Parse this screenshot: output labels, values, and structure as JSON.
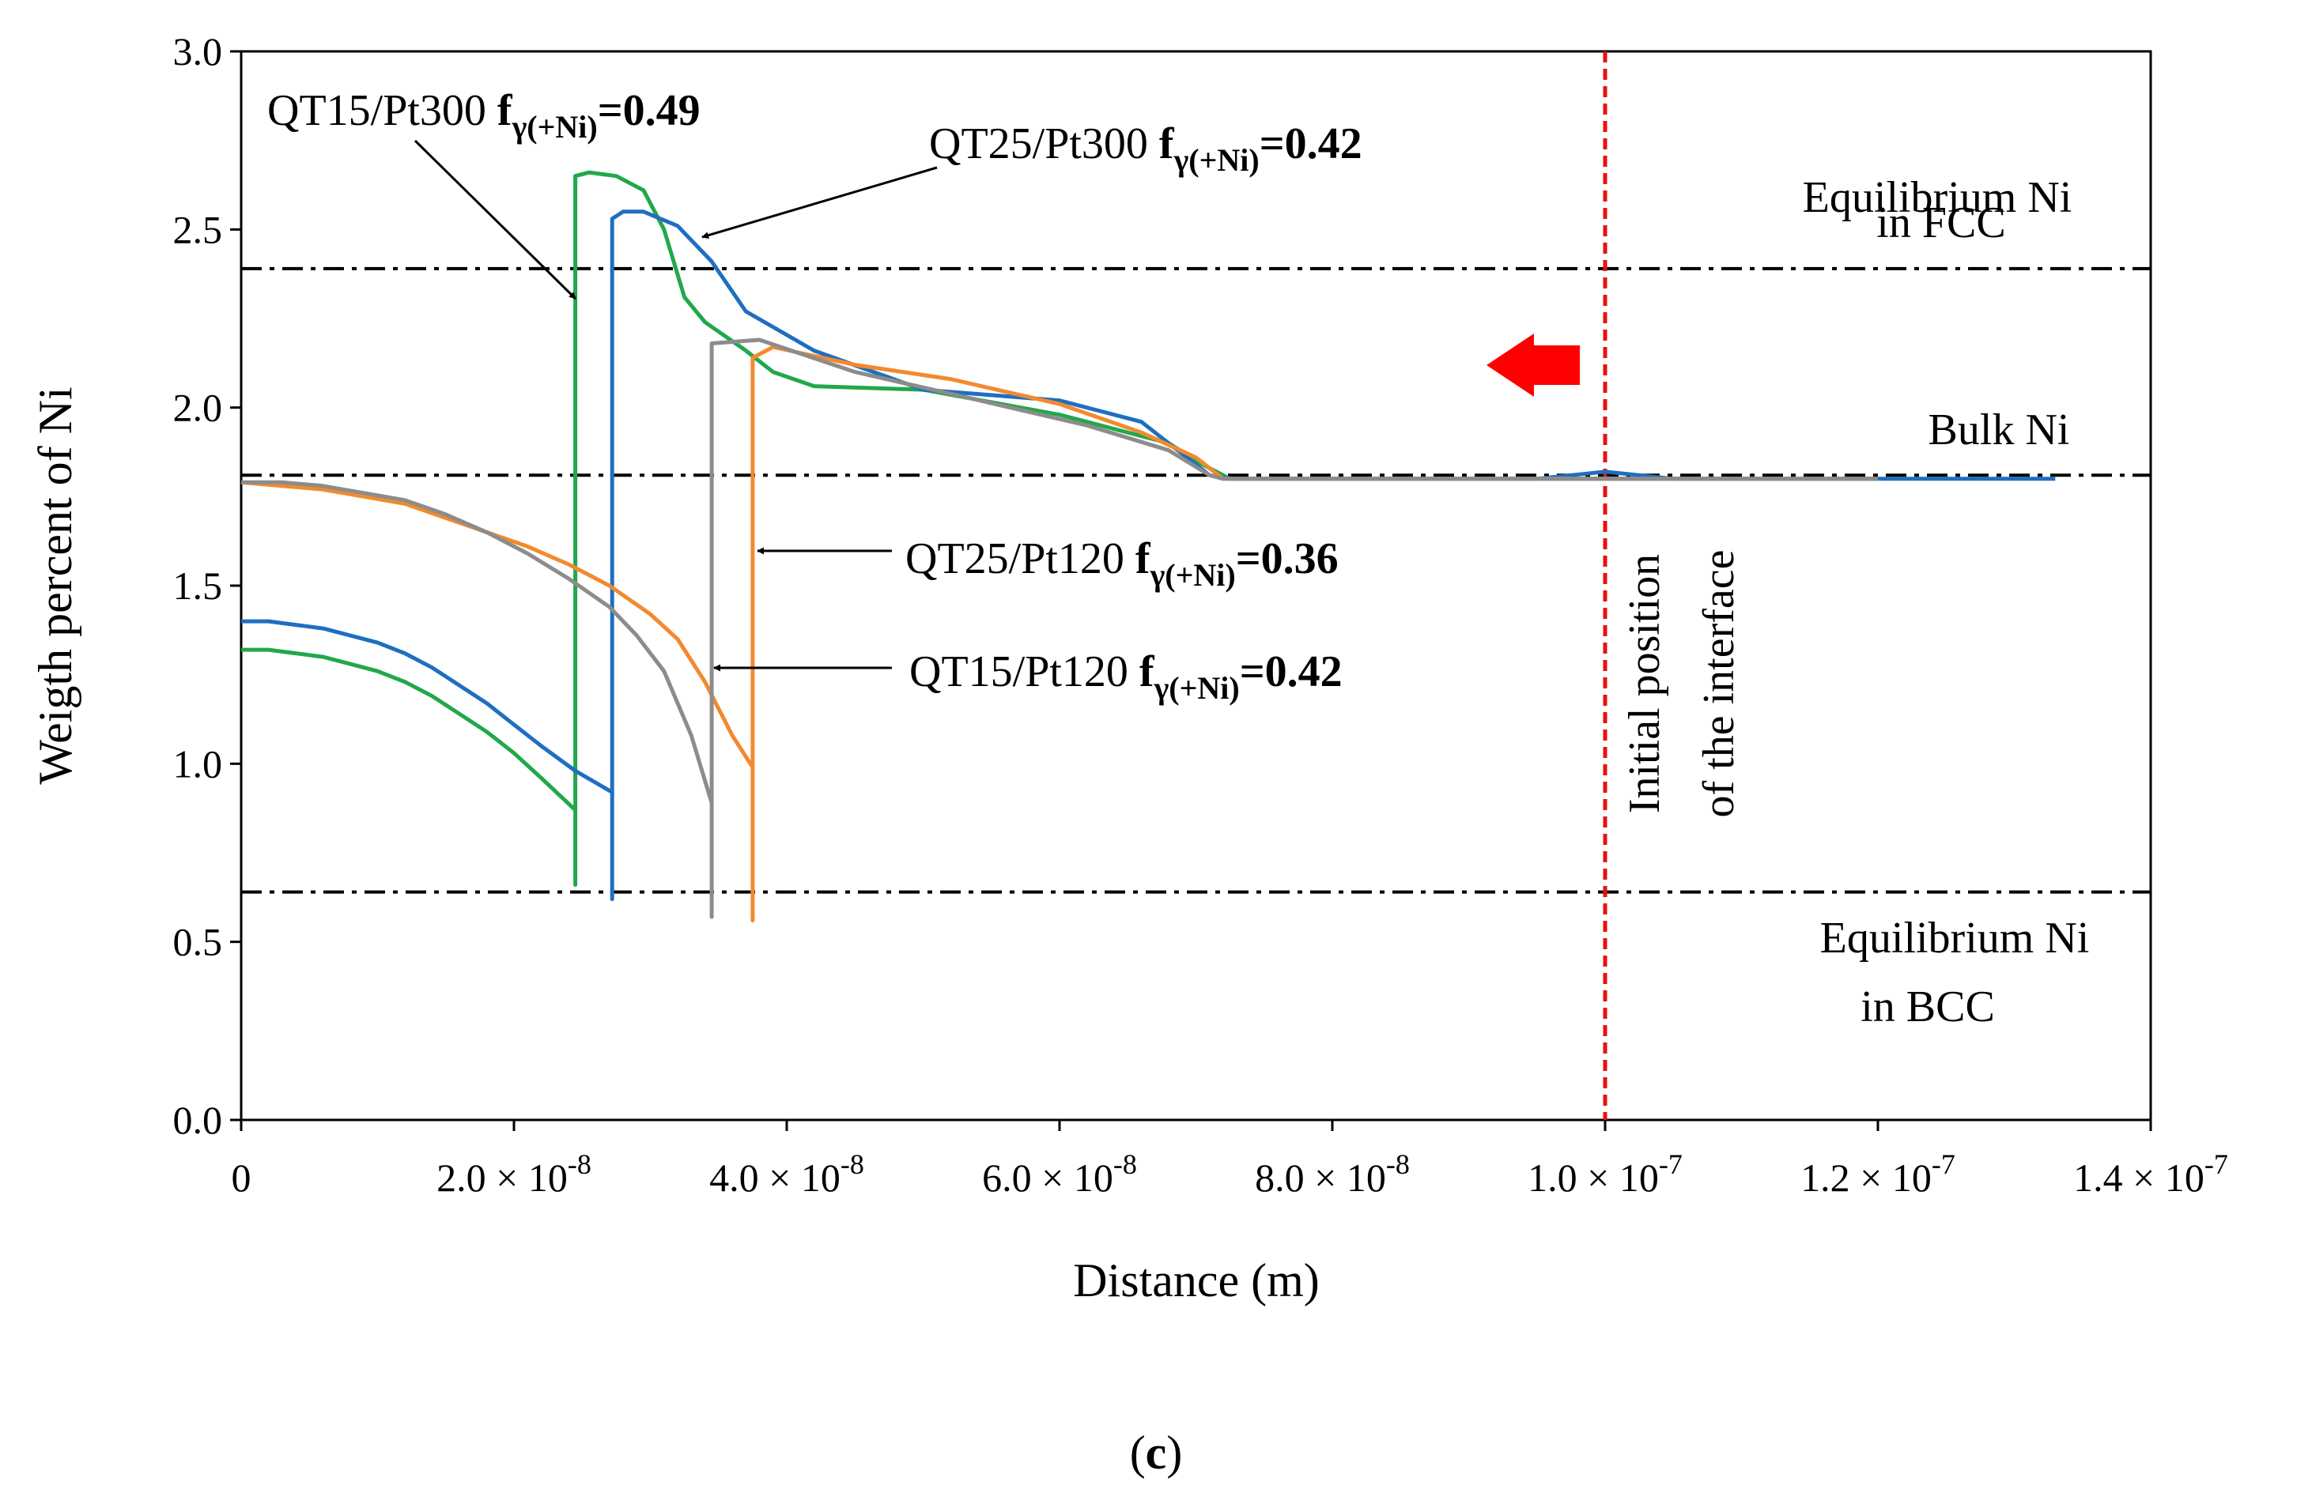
{
  "chart_data": {
    "type": "line",
    "title": "",
    "xlabel": "Distance (m)",
    "ylabel": "Weigth percent of Ni",
    "xlim": [
      0,
      1.4e-07
    ],
    "ylim": [
      0,
      3.0
    ],
    "grid": false,
    "panel_label": {
      "open": "(",
      "letter": "c",
      "close": ")"
    },
    "x_ticks": [
      {
        "value": 0,
        "mant": "0",
        "exp": ""
      },
      {
        "value": 2e-08,
        "mant": "2.0 × 10",
        "exp": "-8"
      },
      {
        "value": 4e-08,
        "mant": "4.0 × 10",
        "exp": "-8"
      },
      {
        "value": 6e-08,
        "mant": "6.0 × 10",
        "exp": "-8"
      },
      {
        "value": 8e-08,
        "mant": "8.0 × 10",
        "exp": "-8"
      },
      {
        "value": 1e-07,
        "mant": "1.0 × 10",
        "exp": "-7"
      },
      {
        "value": 1.2e-07,
        "mant": "1.2 × 10",
        "exp": "-7"
      },
      {
        "value": 1.4e-07,
        "mant": "1.4 × 10",
        "exp": "-7"
      }
    ],
    "y_ticks": [
      {
        "value": 0,
        "label": "0.0"
      },
      {
        "value": 0.5,
        "label": "0.5"
      },
      {
        "value": 1.0,
        "label": "1.0"
      },
      {
        "value": 1.5,
        "label": "1.5"
      },
      {
        "value": 2.0,
        "label": "2.0"
      },
      {
        "value": 2.5,
        "label": "2.5"
      },
      {
        "value": 3.0,
        "label": "3.0"
      }
    ],
    "reference_lines": [
      {
        "name": "fcc-equilibrium",
        "y": 2.39,
        "label_lines": [
          "Equilibrium Ni",
          "in FCC"
        ]
      },
      {
        "name": "bulk-ni",
        "y": 1.81,
        "label_lines": [
          "Bulk Ni"
        ]
      },
      {
        "name": "bcc-equilibrium",
        "y": 0.64,
        "label_lines": [
          "Equilibrium Ni",
          "in BCC"
        ]
      }
    ],
    "interface_line": {
      "x": 1e-07,
      "label_lines": [
        "Initial position",
        "of  the interface"
      ],
      "color": "#e81010"
    },
    "migration_arrow": {
      "color": "#ff0000",
      "direction": "left"
    },
    "series": [
      {
        "name": "QT15/Pt300",
        "fraction": "0.49",
        "color": "#21a84a",
        "points": [
          [
            0,
            1.32
          ],
          [
            2e-09,
            1.32
          ],
          [
            4e-09,
            1.31
          ],
          [
            6e-09,
            1.3
          ],
          [
            8e-09,
            1.28
          ],
          [
            1e-08,
            1.26
          ],
          [
            1.2e-08,
            1.23
          ],
          [
            1.4e-08,
            1.19
          ],
          [
            1.6e-08,
            1.14
          ],
          [
            1.8e-08,
            1.09
          ],
          [
            2e-08,
            1.03
          ],
          [
            2.2e-08,
            0.96
          ],
          [
            2.45e-08,
            0.87
          ],
          [
            2.45e-08,
            0.66
          ],
          [
            2.45e-08,
            2.65
          ],
          [
            2.55e-08,
            2.66
          ],
          [
            2.75e-08,
            2.65
          ],
          [
            2.95e-08,
            2.61
          ],
          [
            3.1e-08,
            2.5
          ],
          [
            3.25e-08,
            2.31
          ],
          [
            3.4e-08,
            2.24
          ],
          [
            3.7e-08,
            2.16
          ],
          [
            3.9e-08,
            2.1
          ],
          [
            4.2e-08,
            2.06
          ],
          [
            5e-08,
            2.05
          ],
          [
            6e-08,
            1.98
          ],
          [
            6.8e-08,
            1.9
          ],
          [
            7.05e-08,
            1.84
          ],
          [
            7.25e-08,
            1.8
          ],
          [
            9e-08,
            1.8
          ],
          [
            1.1e-07,
            1.8
          ],
          [
            1.2e-07,
            1.8
          ]
        ]
      },
      {
        "name": "QT25/Pt300",
        "fraction": "0.42",
        "color": "#1f6fc0",
        "points": [
          [
            0,
            1.4
          ],
          [
            2e-09,
            1.4
          ],
          [
            4e-09,
            1.39
          ],
          [
            6e-09,
            1.38
          ],
          [
            8e-09,
            1.36
          ],
          [
            1e-08,
            1.34
          ],
          [
            1.2e-08,
            1.31
          ],
          [
            1.4e-08,
            1.27
          ],
          [
            1.6e-08,
            1.22
          ],
          [
            1.8e-08,
            1.17
          ],
          [
            2e-08,
            1.11
          ],
          [
            2.2e-08,
            1.05
          ],
          [
            2.45e-08,
            0.98
          ],
          [
            2.72e-08,
            0.92
          ],
          [
            2.72e-08,
            0.62
          ],
          [
            2.72e-08,
            2.53
          ],
          [
            2.8e-08,
            2.55
          ],
          [
            2.95e-08,
            2.55
          ],
          [
            3.2e-08,
            2.51
          ],
          [
            3.45e-08,
            2.41
          ],
          [
            3.7e-08,
            2.27
          ],
          [
            4.2e-08,
            2.16
          ],
          [
            5e-08,
            2.05
          ],
          [
            6e-08,
            2.02
          ],
          [
            6.6e-08,
            1.96
          ],
          [
            6.9e-08,
            1.87
          ],
          [
            7.1e-08,
            1.81
          ],
          [
            7.25e-08,
            1.8
          ],
          [
            9.5e-08,
            1.8
          ],
          [
            1e-07,
            1.82
          ],
          [
            1.05e-07,
            1.8
          ],
          [
            1.33e-07,
            1.8
          ]
        ]
      },
      {
        "name": "QT25/Pt120",
        "fraction": "0.36",
        "color": "#f28a2e",
        "points": [
          [
            0,
            1.79
          ],
          [
            3e-09,
            1.78
          ],
          [
            6e-09,
            1.77
          ],
          [
            9e-09,
            1.75
          ],
          [
            1.2e-08,
            1.73
          ],
          [
            1.5e-08,
            1.69
          ],
          [
            1.8e-08,
            1.65
          ],
          [
            2.1e-08,
            1.61
          ],
          [
            2.4e-08,
            1.56
          ],
          [
            2.7e-08,
            1.5
          ],
          [
            3e-08,
            1.42
          ],
          [
            3.2e-08,
            1.35
          ],
          [
            3.4e-08,
            1.23
          ],
          [
            3.6e-08,
            1.08
          ],
          [
            3.75e-08,
            0.99
          ],
          [
            3.75e-08,
            0.56
          ],
          [
            3.75e-08,
            2.14
          ],
          [
            3.9e-08,
            2.17
          ],
          [
            4.5e-08,
            2.12
          ],
          [
            5.2e-08,
            2.08
          ],
          [
            6e-08,
            2.01
          ],
          [
            6.6e-08,
            1.93
          ],
          [
            7e-08,
            1.86
          ],
          [
            7.2e-08,
            1.8
          ],
          [
            1e-07,
            1.8
          ],
          [
            1.2e-07,
            1.8
          ]
        ]
      },
      {
        "name": "QT15/Pt120",
        "fraction": "0.42",
        "color": "#8c8c8c",
        "points": [
          [
            0,
            1.79
          ],
          [
            3e-09,
            1.79
          ],
          [
            6e-09,
            1.78
          ],
          [
            9e-09,
            1.76
          ],
          [
            1.2e-08,
            1.74
          ],
          [
            1.5e-08,
            1.7
          ],
          [
            1.8e-08,
            1.65
          ],
          [
            2.1e-08,
            1.59
          ],
          [
            2.4e-08,
            1.52
          ],
          [
            2.7e-08,
            1.44
          ],
          [
            2.9e-08,
            1.36
          ],
          [
            3.1e-08,
            1.26
          ],
          [
            3.3e-08,
            1.08
          ],
          [
            3.45e-08,
            0.89
          ],
          [
            3.45e-08,
            0.57
          ],
          [
            3.45e-08,
            2.18
          ],
          [
            3.8e-08,
            2.19
          ],
          [
            4.5e-08,
            2.1
          ],
          [
            5.3e-08,
            2.03
          ],
          [
            6.2e-08,
            1.95
          ],
          [
            6.8e-08,
            1.88
          ],
          [
            7.1e-08,
            1.81
          ],
          [
            7.2e-08,
            1.8
          ],
          [
            1e-07,
            1.8
          ],
          [
            1.2e-07,
            1.8
          ]
        ]
      }
    ],
    "callouts": [
      {
        "name": "qt15-pt300-label",
        "series": 0,
        "prefix": "QT15/Pt300 ",
        "symbol": "f",
        "subscript": "γ(+Ni)",
        "value": "=0.49"
      },
      {
        "name": "qt25-pt300-label",
        "series": 1,
        "prefix": "QT25/Pt300 ",
        "symbol": "f",
        "subscript": "γ(+Ni)",
        "value": "=0.42"
      },
      {
        "name": "qt25-pt120-label",
        "series": 2,
        "prefix": "QT25/Pt120 ",
        "symbol": "f",
        "subscript": "γ(+Ni)",
        "value": "=0.36"
      },
      {
        "name": "qt15-pt120-label",
        "series": 3,
        "prefix": "QT15/Pt120 ",
        "symbol": "f",
        "subscript": "γ(+Ni)",
        "value": "=0.42"
      }
    ]
  }
}
